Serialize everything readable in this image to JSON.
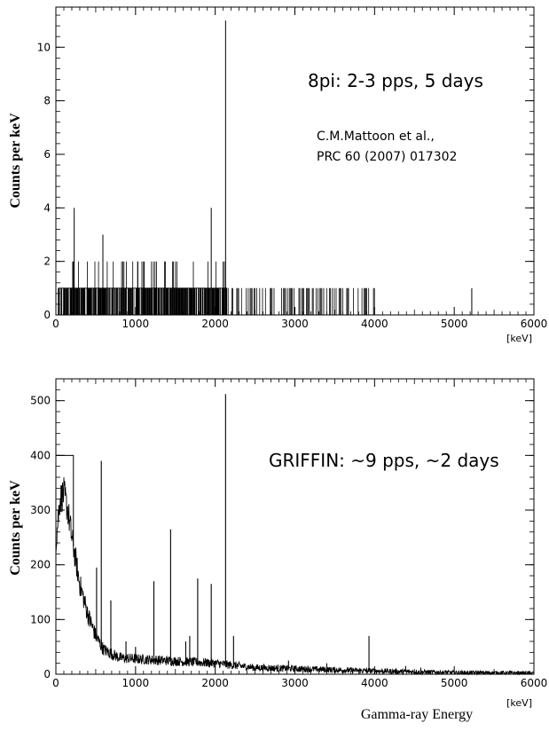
{
  "chart_data": [
    {
      "type": "histogram",
      "title": "",
      "xlabel": "",
      "ylabel": "Counts per keV",
      "x_unit": "[keV]",
      "xlim": [
        0,
        6000
      ],
      "ylim": [
        0,
        11.5
      ],
      "xticks": [
        0,
        1000,
        2000,
        3000,
        4000,
        5000,
        6000
      ],
      "yticks": [
        0,
        2,
        4,
        6,
        8,
        10
      ],
      "grid": false,
      "annotations": [
        "8pi: 2-3 pps, 5 days",
        "C.M.Mattoon et al.,",
        "PRC 60 (2007) 017302"
      ],
      "peaks": [
        {
          "energy": 230,
          "counts": 4
        },
        {
          "energy": 590,
          "counts": 3
        },
        {
          "energy": 1950,
          "counts": 4
        },
        {
          "energy": 2130,
          "counts": 11
        },
        {
          "energy": 5220,
          "counts": 1
        }
      ],
      "background_counts": {
        "dense_region_keV": [
          0,
          2150
        ],
        "sparse_region_keV": [
          2150,
          4000
        ],
        "typical_value": 1,
        "max_value": 2
      }
    },
    {
      "type": "histogram",
      "title": "",
      "xlabel": "Gamma-ray Energy",
      "ylabel": "Counts per keV",
      "x_unit": "[keV]",
      "xlim": [
        0,
        6000
      ],
      "ylim": [
        0,
        540
      ],
      "xticks": [
        0,
        1000,
        2000,
        3000,
        4000,
        5000,
        6000
      ],
      "yticks": [
        0,
        100,
        200,
        300,
        400,
        500
      ],
      "grid": false,
      "annotations": [
        "GRIFFIN: ~9 pps, ~2 days"
      ],
      "peaks": [
        {
          "energy": 511,
          "counts": 195
        },
        {
          "energy": 570,
          "counts": 390
        },
        {
          "energy": 690,
          "counts": 135
        },
        {
          "energy": 880,
          "counts": 60
        },
        {
          "energy": 1000,
          "counts": 50
        },
        {
          "energy": 1230,
          "counts": 170
        },
        {
          "energy": 1440,
          "counts": 265
        },
        {
          "energy": 1630,
          "counts": 60
        },
        {
          "energy": 1680,
          "counts": 70
        },
        {
          "energy": 1780,
          "counts": 175
        },
        {
          "energy": 1950,
          "counts": 165
        },
        {
          "energy": 2130,
          "counts": 512
        },
        {
          "energy": 2230,
          "counts": 70
        },
        {
          "energy": 2920,
          "counts": 25
        },
        {
          "energy": 3400,
          "counts": 20
        },
        {
          "energy": 3930,
          "counts": 70
        },
        {
          "energy": 4390,
          "counts": 15
        },
        {
          "energy": 4580,
          "counts": 12
        }
      ],
      "continuum": {
        "energy": [
          0,
          50,
          100,
          150,
          200,
          300,
          400,
          500,
          600,
          800,
          1000,
          1500,
          2000,
          2500,
          3000,
          4000,
          5000,
          6000
        ],
        "counts": [
          240,
          320,
          330,
          300,
          250,
          165,
          110,
          70,
          45,
          30,
          28,
          24,
          20,
          12,
          10,
          6,
          3,
          2
        ]
      },
      "low_energy_bins": [
        {
          "from": 0,
          "to": 220,
          "counts": 400
        }
      ]
    }
  ]
}
